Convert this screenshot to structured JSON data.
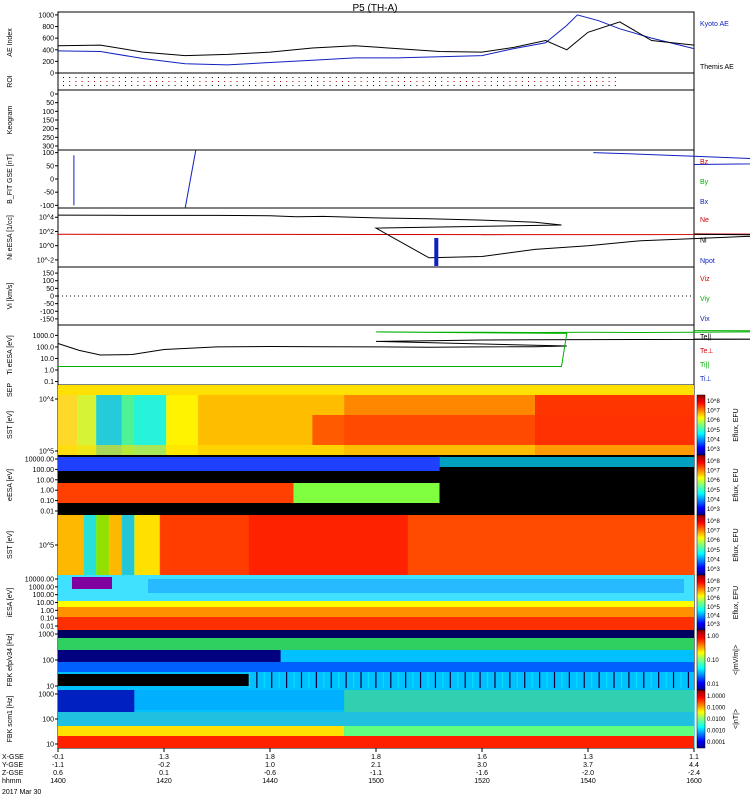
{
  "title": "P5 (TH-A)",
  "colors": {
    "kyoto": "#1020c0",
    "themis": "#000000",
    "red": "#d00000",
    "green": "#00b000",
    "blue": "#1020c0",
    "sep": "#ffe000"
  },
  "x_axis": {
    "times": [
      "1400",
      "1420",
      "1440",
      "1500",
      "1520",
      "1540",
      "1600"
    ],
    "rows": [
      {
        "label": "X-GSE",
        "values": [
          "-0.1",
          "1.3",
          "1.8",
          "1.8",
          "1.6",
          "1.3",
          "1.1"
        ]
      },
      {
        "label": "Y-GSE",
        "values": [
          "-1.1",
          "-0.2",
          "1.0",
          "2.1",
          "3.0",
          "3.7",
          "4.4"
        ]
      },
      {
        "label": "Z-GSE",
        "values": [
          "0.6",
          "0.1",
          "-0.6",
          "-1.1",
          "-1.6",
          "-2.0",
          "-2.4"
        ]
      },
      {
        "label": "hhmm",
        "values": [
          "1400",
          "1420",
          "1440",
          "1500",
          "1520",
          "1540",
          "1600"
        ]
      }
    ],
    "date": "2017 Mar 30"
  },
  "chart_data": [
    {
      "type": "line",
      "ylabel": "AE Index",
      "ylim": [
        0,
        1050
      ],
      "yticks": [
        "0",
        "200",
        "400",
        "600",
        "800",
        "1000"
      ],
      "legend": [
        "Kyoto AE",
        "Themis AE"
      ],
      "series": [
        {
          "name": "Kyoto AE",
          "x": [
            1400,
            1408,
            1416,
            1424,
            1432,
            1440,
            1448,
            1456,
            1504,
            1512,
            1520,
            1526,
            1532,
            1536,
            1538,
            1542,
            1546,
            1552,
            1600
          ],
          "y": [
            380,
            370,
            250,
            160,
            140,
            180,
            220,
            260,
            260,
            280,
            300,
            420,
            520,
            820,
            1000,
            900,
            760,
            600,
            420
          ]
        },
        {
          "name": "Themis AE",
          "x": [
            1400,
            1408,
            1416,
            1424,
            1432,
            1440,
            1448,
            1456,
            1504,
            1512,
            1520,
            1526,
            1532,
            1536,
            1540,
            1546,
            1552,
            1600
          ],
          "y": [
            470,
            480,
            360,
            300,
            320,
            360,
            430,
            470,
            420,
            370,
            360,
            440,
            560,
            400,
            700,
            880,
            560,
            480
          ]
        }
      ]
    },
    {
      "type": "table",
      "ylabel": "ROI"
    },
    {
      "type": "heatmap",
      "ylabel": "Keogram",
      "ylim": [
        0,
        300
      ],
      "yticks": [
        "0",
        "50",
        "100",
        "150",
        "200",
        "250",
        "300"
      ]
    },
    {
      "type": "line",
      "ylabel": "B_FIT GSE [nT]",
      "ylim": [
        -110,
        110
      ],
      "yticks": [
        "-100",
        "-50",
        "0",
        "50",
        "100"
      ],
      "legend": [
        "Bz",
        "By",
        "Bx"
      ],
      "series": [
        {
          "name": "Bx",
          "x": [
            1541,
            1550,
            1560,
            1570,
            1580,
            1590,
            1600
          ],
          "y": [
            100,
            94,
            86,
            78,
            70,
            62,
            55
          ]
        }
      ]
    },
    {
      "type": "line",
      "ylabel": "Ni eESA [1/cc]",
      "yscale": "log",
      "ylim": [
        0.001,
        200000
      ],
      "yticks": [
        "10^-2",
        "10^0",
        "10^2",
        "10^4"
      ],
      "legend": [
        "Ne",
        "Ni",
        "Npot"
      ],
      "series": [
        {
          "name": "Ne",
          "x": [
            1400,
            1430,
            1460,
            1490,
            1520,
            1550,
            1580,
            1600
          ],
          "y": [
            40,
            38,
            37,
            36,
            35,
            36,
            40,
            45
          ]
        },
        {
          "name": "Ni",
          "x": [
            1400,
            1410,
            1420,
            1430,
            1440,
            1445,
            1450,
            1460,
            1470,
            1480,
            1490,
            1495,
            1500,
            1510,
            1520,
            1530,
            1540,
            1550,
            1560,
            1570,
            1580,
            1600
          ],
          "y": [
            20000,
            19000,
            18000,
            18000,
            16000,
            12000,
            13000,
            8000,
            6000,
            4000,
            2000,
            800,
            300,
            0.02,
            0.03,
            0.3,
            1,
            5,
            10,
            20,
            30,
            40
          ]
        }
      ]
    },
    {
      "type": "line",
      "ylabel": "Vi [km/s]",
      "ylim": [
        -190,
        190
      ],
      "yticks": [
        "-150",
        "-100",
        "-50",
        "0",
        "50",
        "100",
        "150"
      ],
      "legend": [
        "Viz",
        "Viy",
        "Vix"
      ]
    },
    {
      "type": "line",
      "ylabel": "Ti eESA [eV]",
      "yscale": "log",
      "ylim": [
        0.05,
        8000
      ],
      "yticks": [
        "0.1",
        "1.0",
        "10.0",
        "100.0",
        "1000.0"
      ],
      "legend": [
        "Te||",
        "Te⊥",
        "Ti||",
        "Ti⊥"
      ],
      "series": [
        {
          "name": "Te||",
          "x": [
            1400,
            1404,
            1408,
            1414,
            1420,
            1430,
            1440,
            1450,
            1460,
            1470,
            1480,
            1490,
            1496,
            1500,
            1510,
            1520,
            1530,
            1540,
            1550,
            1560,
            1570,
            1580,
            1600
          ],
          "y": [
            200,
            50,
            20,
            22,
            60,
            100,
            110,
            105,
            100,
            95,
            100,
            105,
            120,
            300,
            350,
            400,
            420,
            430,
            440,
            450,
            460,
            470,
            480
          ]
        },
        {
          "name": "Ti||",
          "x": [
            1400,
            1420,
            1440,
            1460,
            1480,
            1490,
            1495,
            1496,
            1500,
            1510,
            1520,
            1530,
            1540,
            1550,
            1560,
            1570,
            1580,
            1590,
            1600
          ],
          "y": [
            2,
            2,
            2,
            2,
            2,
            2,
            2,
            1500,
            2000,
            1900,
            1900,
            1800,
            1850,
            1800,
            1900,
            2000,
            2000,
            2300,
            2600
          ]
        }
      ]
    },
    {
      "type": "table",
      "ylabel": "SEP"
    },
    {
      "type": "heatmap",
      "ylabel": "SST [eV]",
      "yticks": [
        "10^4",
        "10^5"
      ],
      "zlabel": "Eflux, EFU"
    },
    {
      "type": "heatmap",
      "ylabel": "eESA [eV]",
      "yticks": [
        "10000.00",
        "100.00",
        "10.00",
        "1.00",
        "0.10",
        "0.01"
      ],
      "zlabel": "Eflux, EFU"
    },
    {
      "type": "heatmap",
      "ylabel": "SST [eV]",
      "yticks": [
        "10^5"
      ],
      "zlabel": "Eflux, EFU"
    },
    {
      "type": "heatmap",
      "ylabel": "iESA [eV]",
      "yticks": [
        "10000.00",
        "1000.00",
        "100.00",
        "10.00",
        "1.00",
        "0.10",
        "0.01"
      ],
      "zlabel": "Eflux, EFU"
    },
    {
      "type": "heatmap",
      "ylabel": "FBK efp/v34 [Hz]",
      "yticks": [
        "1000",
        "100",
        "10"
      ],
      "zlabel": "<|mV/m|>",
      "zticks": [
        "1.00",
        "0.10",
        "0.01"
      ]
    },
    {
      "type": "heatmap",
      "ylabel": "FBK scm1 [Hz]",
      "yticks": [
        "1000",
        "100",
        "10"
      ],
      "zlabel": "<|nT|>",
      "zticks": [
        "1.0000",
        "0.1000",
        "0.0100",
        "0.0010",
        "0.0001"
      ]
    }
  ],
  "colorbar1": {
    "ticks": [
      "10^8",
      "10^7",
      "10^6",
      "10^5",
      "10^4",
      "10^3",
      "10^8",
      "10^7",
      "10^6",
      "10^5",
      "10^4",
      "10^3",
      "10^8",
      "10^7",
      "10^6",
      "10^5",
      "10^4",
      "10^3",
      "10^8",
      "10^7",
      "10^6",
      "10^5",
      "10^4",
      "10^3"
    ]
  }
}
